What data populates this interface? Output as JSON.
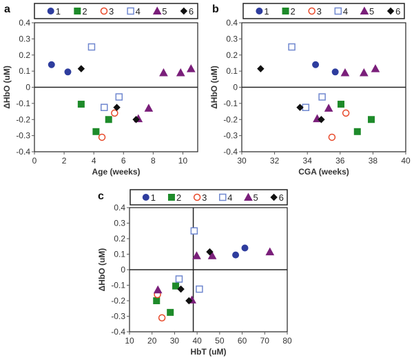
{
  "series_styles": [
    {
      "name": "1",
      "shape": "circle",
      "fill": "#2E3D9E",
      "stroke": "#2E3D9E"
    },
    {
      "name": "2",
      "shape": "square",
      "fill": "#1E8B2A",
      "stroke": "#1E8B2A"
    },
    {
      "name": "3",
      "shape": "circle",
      "fill": "none",
      "stroke": "#E8492A"
    },
    {
      "name": "4",
      "shape": "square",
      "fill": "none",
      "stroke": "#6F87CF"
    },
    {
      "name": "5",
      "shape": "triangle",
      "fill": "#7A1F7A",
      "stroke": "#7A1F7A"
    },
    {
      "name": "6",
      "shape": "diamond",
      "fill": "#111111",
      "stroke": "#111111"
    }
  ],
  "chart_data": [
    {
      "panel": "a",
      "type": "scatter",
      "xlabel": "Age (weeks)",
      "ylabel": "ΔHbO (uM)",
      "xlim": [
        0,
        11
      ],
      "ylim": [
        -0.4,
        0.4
      ],
      "xticks": [
        0,
        2,
        4,
        6,
        8,
        10
      ],
      "yticks": [
        0.4,
        0.3,
        0.2,
        0.1,
        0,
        -0.1,
        -0.2,
        -0.3,
        -0.4
      ],
      "ytick_labels": [
        "0.4",
        "0.3",
        "0.2",
        "0.1",
        "0",
        "-0.1",
        "-0.2",
        "-0.3",
        "-0.4"
      ],
      "vline": null,
      "series": [
        {
          "name": "1",
          "points": [
            [
              1.15,
              0.14
            ],
            [
              2.25,
              0.095
            ]
          ]
        },
        {
          "name": "2",
          "points": [
            [
              3.15,
              -0.105
            ],
            [
              4.15,
              -0.275
            ],
            [
              5.0,
              -0.2
            ]
          ]
        },
        {
          "name": "3",
          "points": [
            [
              4.55,
              -0.31
            ],
            [
              5.4,
              -0.16
            ]
          ]
        },
        {
          "name": "4",
          "points": [
            [
              3.85,
              0.25
            ],
            [
              4.7,
              -0.125
            ],
            [
              5.7,
              -0.06
            ]
          ]
        },
        {
          "name": "5",
          "points": [
            [
              7.0,
              -0.195
            ],
            [
              7.7,
              -0.13
            ],
            [
              8.7,
              0.09
            ],
            [
              9.85,
              0.09
            ],
            [
              10.55,
              0.115
            ]
          ]
        },
        {
          "name": "6",
          "points": [
            [
              3.15,
              0.115
            ],
            [
              5.55,
              -0.125
            ],
            [
              6.85,
              -0.2
            ]
          ]
        }
      ]
    },
    {
      "panel": "b",
      "type": "scatter",
      "xlabel": "CGA (weeks)",
      "ylabel": "ΔHbO (uM)",
      "xlim": [
        30,
        40
      ],
      "ylim": [
        -0.4,
        0.4
      ],
      "xticks": [
        30,
        32,
        34,
        36,
        38,
        40
      ],
      "yticks": [
        0.4,
        0.3,
        0.2,
        0.1,
        0,
        -0.1,
        -0.2,
        -0.3,
        -0.4
      ],
      "ytick_labels": [
        "0.4",
        "0.3",
        "0.2",
        "0.1",
        "0",
        "-0.1",
        "-0.2",
        "-0.3",
        "-0.4"
      ],
      "vline": null,
      "series": [
        {
          "name": "1",
          "points": [
            [
              34.5,
              0.14
            ],
            [
              35.7,
              0.095
            ]
          ]
        },
        {
          "name": "2",
          "points": [
            [
              36.05,
              -0.105
            ],
            [
              37.05,
              -0.275
            ],
            [
              37.9,
              -0.2
            ]
          ]
        },
        {
          "name": "3",
          "points": [
            [
              35.5,
              -0.31
            ],
            [
              36.35,
              -0.16
            ]
          ]
        },
        {
          "name": "4",
          "points": [
            [
              33.05,
              0.25
            ],
            [
              33.9,
              -0.125
            ],
            [
              34.9,
              -0.06
            ]
          ]
        },
        {
          "name": "5",
          "points": [
            [
              34.6,
              -0.195
            ],
            [
              35.3,
              -0.13
            ],
            [
              36.3,
              0.09
            ],
            [
              37.45,
              0.09
            ],
            [
              38.15,
              0.115
            ]
          ]
        },
        {
          "name": "6",
          "points": [
            [
              31.15,
              0.115
            ],
            [
              33.55,
              -0.125
            ],
            [
              34.85,
              -0.2
            ]
          ]
        }
      ]
    },
    {
      "panel": "c",
      "type": "scatter",
      "xlabel": "HbT (uM)",
      "ylabel": "ΔHbO (uM)",
      "xlim": [
        10,
        80
      ],
      "ylim": [
        -0.4,
        0.4
      ],
      "xticks": [
        10,
        20,
        30,
        40,
        50,
        60,
        70,
        80
      ],
      "yticks": [
        0.4,
        0.3,
        0.2,
        0.1,
        0,
        -0.1,
        -0.2,
        -0.3,
        -0.4
      ],
      "ytick_labels": [
        "0.4",
        "0.3",
        "0.2",
        "0.1",
        "0",
        "-0.1",
        "-0.2",
        "-0.3",
        "-0.4"
      ],
      "vline": 38.3,
      "series": [
        {
          "name": "1",
          "points": [
            [
              57.1,
              0.095
            ],
            [
              61.2,
              0.14
            ]
          ]
        },
        {
          "name": "2",
          "points": [
            [
              30.5,
              -0.105
            ],
            [
              28.1,
              -0.275
            ],
            [
              22.0,
              -0.2
            ]
          ]
        },
        {
          "name": "3",
          "points": [
            [
              22.4,
              -0.16
            ],
            [
              24.4,
              -0.31
            ]
          ]
        },
        {
          "name": "4",
          "points": [
            [
              38.7,
              0.25
            ],
            [
              32.0,
              -0.06
            ],
            [
              41.0,
              -0.125
            ]
          ]
        },
        {
          "name": "5",
          "points": [
            [
              22.6,
              -0.13
            ],
            [
              37.7,
              -0.195
            ],
            [
              39.8,
              0.09
            ],
            [
              46.7,
              0.09
            ],
            [
              72.3,
              0.115
            ]
          ]
        },
        {
          "name": "6",
          "points": [
            [
              32.8,
              -0.125
            ],
            [
              36.4,
              -0.2
            ],
            [
              45.6,
              0.115
            ]
          ]
        }
      ]
    }
  ]
}
